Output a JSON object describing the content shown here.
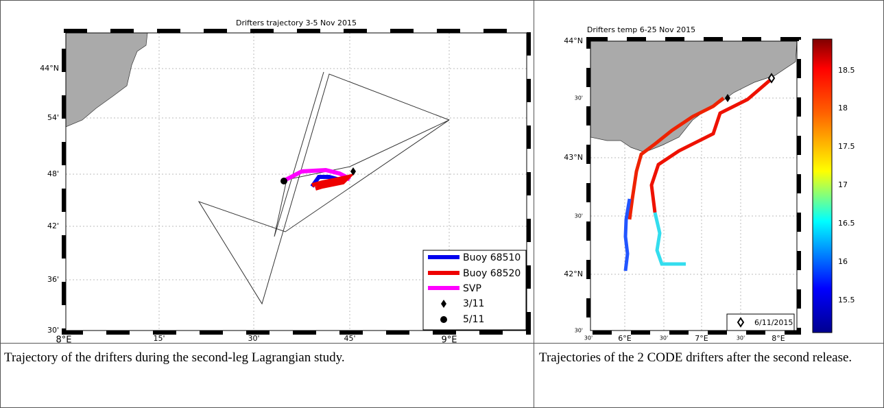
{
  "figures": [
    {
      "title": "Drifters trajectory 3-5 Nov 2015",
      "y_labels": [
        "44°N",
        "54'",
        "48'",
        "42'",
        "36'",
        "30'"
      ],
      "x_labels": [
        "8°E",
        "15'",
        "30'",
        "45'",
        "9°E"
      ],
      "legend": [
        "Buoy 68510",
        "Buoy 68520",
        "SVP",
        "3/11",
        "5/11"
      ]
    },
    {
      "title": "Drifters temp 6-25 Nov 2015",
      "y_labels": [
        "44°N",
        "30'",
        "43°N",
        "30'",
        "42°N",
        "30'"
      ],
      "x_labels": [
        "30'",
        "6°E",
        "30'",
        "7°E",
        "30'",
        "8°E"
      ],
      "colorbar_ticks": [
        18.5,
        18,
        17.5,
        17,
        16.5,
        16,
        15.5
      ],
      "legend": [
        "6/11/2015"
      ]
    }
  ],
  "captions": [
    "Trajectory of the drifters during the second-leg Lagrangian study.",
    "Trajectories of the 2 CODE drifters after the second release."
  ]
}
